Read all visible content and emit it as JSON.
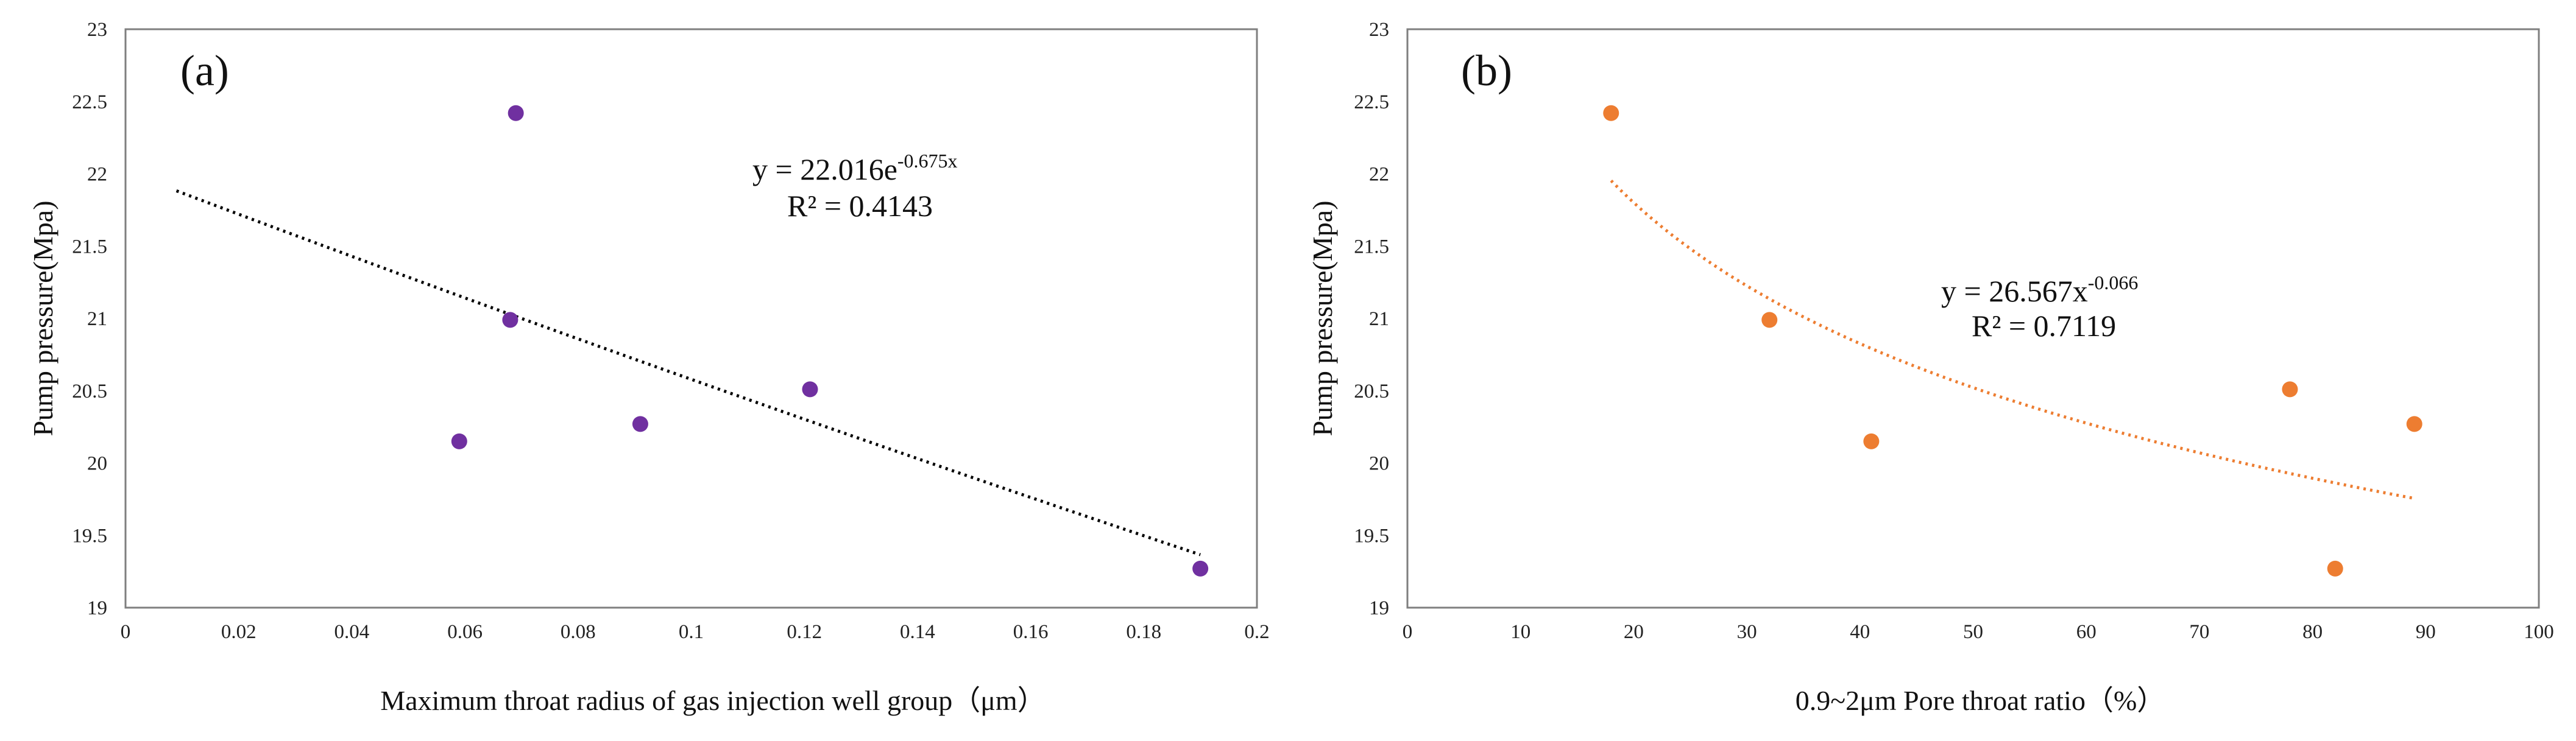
{
  "chart_data": [
    {
      "type": "scatter",
      "panel_label": "(a)",
      "xlabel": "Maximum throat radius of gas injection well group（μm）",
      "ylabel": "Pump pressure(Mpa)",
      "xlim": [
        0,
        0.2
      ],
      "ylim": [
        19,
        23
      ],
      "x_ticks": [
        "0",
        "0.02",
        "0.04",
        "0.06",
        "0.08",
        "0.1",
        "0.12",
        "0.14",
        "0.16",
        "0.18",
        "0.2"
      ],
      "y_ticks": [
        "19",
        "19.5",
        "20",
        "20.5",
        "21",
        "21.5",
        "22",
        "22.5",
        "23"
      ],
      "marker_color": "#7030a0",
      "points": [
        {
          "x": 0.059,
          "y": 20.15
        },
        {
          "x": 0.068,
          "y": 20.99
        },
        {
          "x": 0.069,
          "y": 22.42
        },
        {
          "x": 0.091,
          "y": 20.27
        },
        {
          "x": 0.121,
          "y": 20.51
        },
        {
          "x": 0.19,
          "y": 19.27
        }
      ],
      "trendline": {
        "type": "exponential",
        "a": 22.016,
        "b": -0.675,
        "x_range": [
          0.009,
          0.19
        ],
        "color": "#000000",
        "equation_base": "y = 22.016e",
        "equation_sup": "-0.675x",
        "r2_text": "R² = 0.4143"
      }
    },
    {
      "type": "scatter",
      "panel_label": "(b)",
      "xlabel": "0.9~2μm Pore throat ratio（%）",
      "ylabel": "Pump pressure(Mpa)",
      "xlim": [
        0,
        100
      ],
      "ylim": [
        19,
        23
      ],
      "x_ticks": [
        "0",
        "10",
        "20",
        "30",
        "40",
        "50",
        "60",
        "70",
        "80",
        "90",
        "100"
      ],
      "y_ticks": [
        "19",
        "19.5",
        "20",
        "20.5",
        "21",
        "21.5",
        "22",
        "22.5",
        "23"
      ],
      "marker_color": "#ed7d31",
      "points": [
        {
          "x": 18,
          "y": 22.42
        },
        {
          "x": 32,
          "y": 20.99
        },
        {
          "x": 41,
          "y": 20.15
        },
        {
          "x": 78,
          "y": 20.51
        },
        {
          "x": 82,
          "y": 19.27
        },
        {
          "x": 89,
          "y": 20.27
        }
      ],
      "trendline": {
        "type": "power",
        "a": 26.567,
        "b": -0.066,
        "x_range": [
          18,
          89
        ],
        "color": "#ed7d31",
        "equation_base": "y = 26.567x",
        "equation_sup": "-0.066",
        "r2_text": "R² = 0.7119"
      }
    }
  ]
}
